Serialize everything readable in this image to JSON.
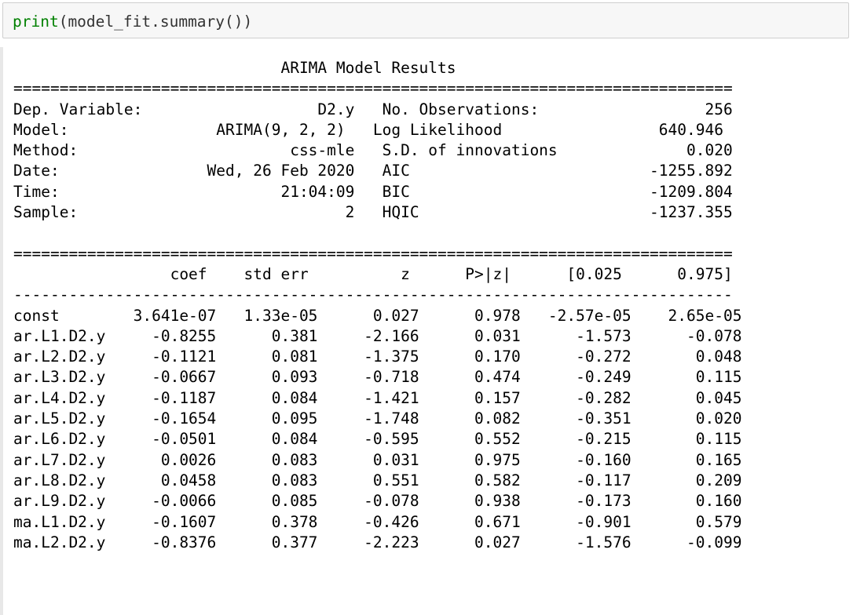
{
  "input_cell": {
    "code_keyword": "print",
    "code_rest": "(model_fit.summary())"
  },
  "output": {
    "lines": [
      "                             ARIMA Model Results                              ",
      "==============================================================================",
      "Dep. Variable:                   D2.y   No. Observations:                  256",
      "Model:                ARIMA(9, 2, 2)   Log Likelihood                 640.946",
      "Method:                       css-mle   S.D. of innovations              0.020",
      "Date:                Wed, 26 Feb 2020   AIC                          -1255.892",
      "Time:                        21:04:09   BIC                          -1209.804",
      "Sample:                             2   HQIC                         -1237.355",
      "",
      "==============================================================================",
      "                 coef    std err          z      P>|z|      [0.025      0.975]",
      "------------------------------------------------------------------------------",
      "const        3.641e-07   1.33e-05      0.027      0.978   -2.57e-05    2.65e-05",
      "ar.L1.D2.y     -0.8255      0.381     -2.166      0.031      -1.573      -0.078",
      "ar.L2.D2.y     -0.1121      0.081     -1.375      0.170      -0.272       0.048",
      "ar.L3.D2.y     -0.0667      0.093     -0.718      0.474      -0.249       0.115",
      "ar.L4.D2.y     -0.1187      0.084     -1.421      0.157      -0.282       0.045",
      "ar.L5.D2.y     -0.1654      0.095     -1.748      0.082      -0.351       0.020",
      "ar.L6.D2.y     -0.0501      0.084     -0.595      0.552      -0.215       0.115",
      "ar.L7.D2.y      0.0026      0.083      0.031      0.975      -0.160       0.165",
      "ar.L8.D2.y      0.0458      0.083      0.551      0.582      -0.117       0.209",
      "ar.L9.D2.y     -0.0066      0.085     -0.078      0.938      -0.173       0.160",
      "ma.L1.D2.y     -0.1607      0.378     -0.426      0.671      -0.901       0.579",
      "ma.L2.D2.y     -0.8376      0.377     -2.223      0.027      -1.576      -0.099"
    ]
  },
  "colors": {
    "keyword": "#008000",
    "code_text": "#333333",
    "input_background": "#f7f7f7",
    "input_border": "#cfcfcf"
  }
}
